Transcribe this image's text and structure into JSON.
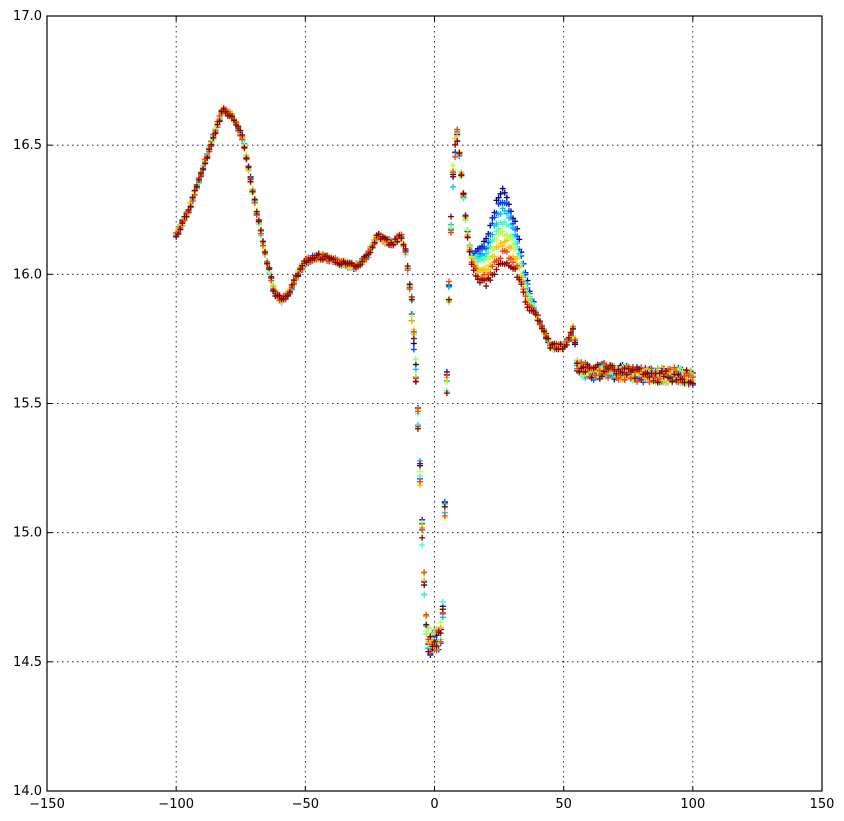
{
  "chart_data": {
    "type": "scatter",
    "title": "",
    "xlabel": "",
    "ylabel": "",
    "xlim": [
      -150,
      150
    ],
    "ylim": [
      14.0,
      17.0
    ],
    "xticks": [
      -150,
      -100,
      -50,
      0,
      50,
      100,
      150
    ],
    "yticks": [
      14.0,
      14.5,
      15.0,
      15.5,
      16.0,
      16.5,
      17.0
    ],
    "xtick_labels": [
      "−150",
      "−100",
      "−50",
      "0",
      "50",
      "100",
      "150"
    ],
    "ytick_labels": [
      "14.0",
      "14.5",
      "15.0",
      "15.5",
      "16.0",
      "16.5",
      "17.0"
    ],
    "grid": true,
    "marker": "plus",
    "colormap": [
      "#00008f",
      "#0040ff",
      "#00bfff",
      "#40ffbf",
      "#bfff40",
      "#ffbf00",
      "#ff4000",
      "#8f0000"
    ],
    "profile": {
      "description_x": "position",
      "x": [
        -100,
        -95,
        -90,
        -85,
        -82,
        -78,
        -74,
        -70,
        -66,
        -62,
        -59,
        -56,
        -53,
        -50,
        -45,
        -40,
        -35,
        -30,
        -26,
        -22,
        -19,
        -16,
        -13,
        -11,
        -9,
        -7,
        -6,
        -5,
        -4,
        -3,
        -2,
        -1,
        0,
        1,
        2,
        3,
        4,
        5,
        6,
        7,
        8,
        9,
        10,
        12,
        14,
        17,
        20,
        24,
        28,
        32,
        36,
        40,
        45,
        48,
        50,
        52,
        54,
        55,
        58,
        62,
        66,
        70,
        75,
        80,
        85,
        90,
        95,
        100
      ],
      "y": [
        16.15,
        16.25,
        16.4,
        16.55,
        16.64,
        16.61,
        16.52,
        16.3,
        16.1,
        15.93,
        15.9,
        15.93,
        16.0,
        16.05,
        16.07,
        16.06,
        16.04,
        16.03,
        16.07,
        16.15,
        16.13,
        16.12,
        16.15,
        16.08,
        15.9,
        15.6,
        15.35,
        15.05,
        14.8,
        14.6,
        14.58,
        14.57,
        14.58,
        14.59,
        14.6,
        14.62,
        15.1,
        15.7,
        16.1,
        16.35,
        16.5,
        16.53,
        16.43,
        16.22,
        16.05,
        15.98,
        15.96,
        16.02,
        16.05,
        16.0,
        15.88,
        15.83,
        15.72,
        15.72,
        15.72,
        15.75,
        15.8,
        15.65,
        15.63,
        15.62,
        15.63,
        15.62,
        15.62,
        15.61,
        15.61,
        15.61,
        15.61,
        15.6
      ]
    },
    "spread_region": {
      "x_start": 12,
      "x_end": 40,
      "upper": 16.3,
      "lower": 15.96
    },
    "series_count": 8
  }
}
